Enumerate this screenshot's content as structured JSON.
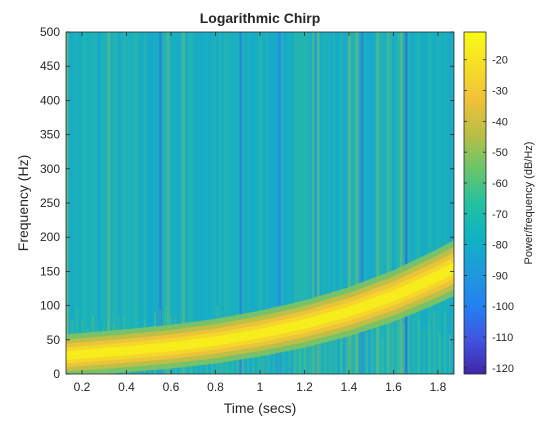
{
  "chart_data": {
    "type": "heatmap",
    "title": "Logarithmic Chirp",
    "xlabel": "Time (secs)",
    "ylabel": "Frequency (Hz)",
    "xlim": [
      0.128,
      1.872
    ],
    "ylim": [
      0,
      500
    ],
    "xticks": [
      0.2,
      0.4,
      0.6,
      0.8,
      1,
      1.2,
      1.4,
      1.6,
      1.8
    ],
    "yticks": [
      0,
      50,
      100,
      150,
      200,
      250,
      300,
      350,
      400,
      450,
      500
    ],
    "colorbar": {
      "label": "Power/frequency (dB/Hz)",
      "range": [
        -122,
        -11
      ],
      "ticks": [
        -120,
        -110,
        -100,
        -90,
        -80,
        -70,
        -60,
        -50,
        -40,
        -30,
        -20
      ],
      "colormap": "parula",
      "colors": [
        "#3e26a8",
        "#4154e0",
        "#2381f2",
        "#1e9bda",
        "#10b3c3",
        "#24c0a0",
        "#6ac56b",
        "#b8bf44",
        "#f0c13a",
        "#f7dd25",
        "#f9fb15"
      ]
    },
    "chirp_ridge": {
      "t": [
        0.128,
        0.4,
        0.6,
        0.8,
        1.0,
        1.2,
        1.4,
        1.6,
        1.8,
        1.872
      ],
      "f": [
        27,
        34,
        40,
        48,
        59,
        73,
        91,
        114,
        143,
        155
      ],
      "peak_db": -15
    },
    "background_db": -75
  }
}
